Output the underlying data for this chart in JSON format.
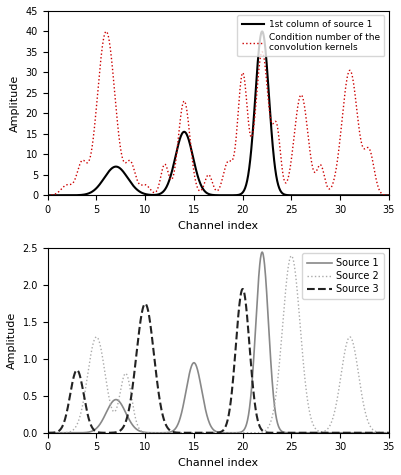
{
  "title1": "",
  "title2": "",
  "xlabel": "Channel index",
  "ylabel": "Amplitude",
  "xlim": [
    0,
    35
  ],
  "ylim1": [
    0,
    45
  ],
  "ylim2": [
    0,
    2.5
  ],
  "yticks1": [
    0,
    5,
    10,
    15,
    20,
    25,
    30,
    35,
    40,
    45
  ],
  "yticks2": [
    0,
    0.5,
    1.0,
    1.5,
    2.0,
    2.5
  ],
  "xticks": [
    0,
    5,
    10,
    15,
    20,
    25,
    30,
    35
  ],
  "legend1_labels": [
    "1st column of source 1",
    "Condition number of the\nconvolution kernels"
  ],
  "legend2_labels": [
    "Source 1",
    "Source 2",
    "Source 3"
  ],
  "source1_color": "#888888",
  "source2_color": "#aaaaaa",
  "source3_color": "#222222",
  "black_line_color": "#000000",
  "red_dotted_color": "#cc0000",
  "background_color": "#ffffff"
}
